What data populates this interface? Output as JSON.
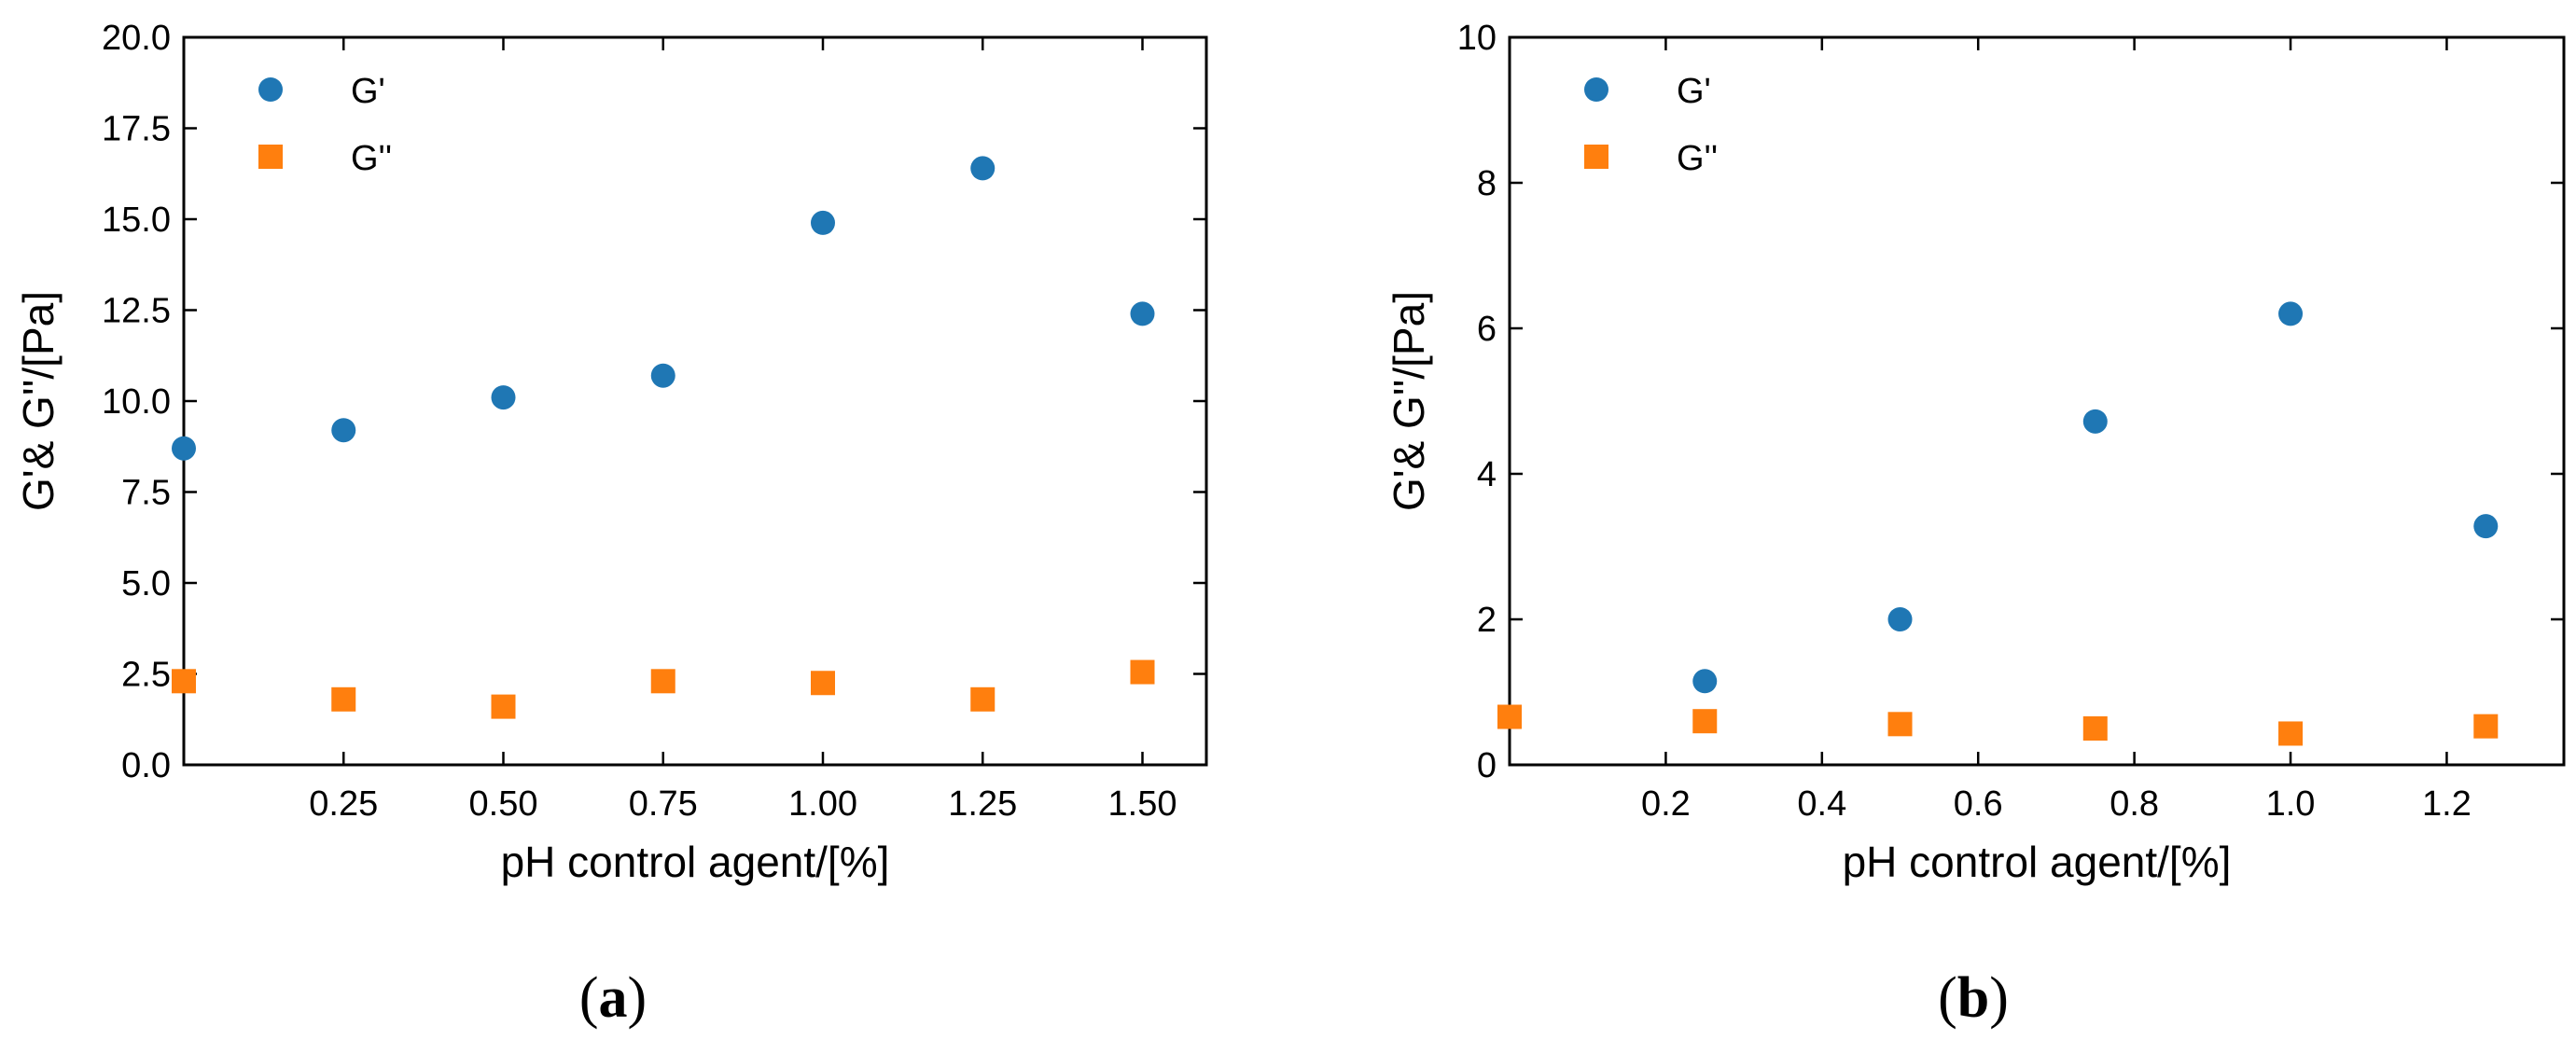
{
  "chart_data": [
    {
      "panel_label": "a",
      "type": "scatter",
      "title": "",
      "xlabel": "pH control agent/[%]",
      "ylabel": "G'& G''/[Pa]",
      "xlim": [
        0,
        1.6
      ],
      "ylim": [
        0,
        20
      ],
      "xticks": [
        0.25,
        0.5,
        0.75,
        1.0,
        1.25,
        1.5
      ],
      "xtick_labels": [
        "0.25",
        "0.50",
        "0.75",
        "1.00",
        "1.25",
        "1.50"
      ],
      "yticks": [
        0,
        2.5,
        5,
        7.5,
        10,
        12.5,
        15,
        17.5,
        20
      ],
      "ytick_labels": [
        "0.0",
        "2.5",
        "5.0",
        "7.5",
        "10.0",
        "12.5",
        "15.0",
        "17.5",
        "20.0"
      ],
      "legend_position": "top-left",
      "series": [
        {
          "name": "G'",
          "marker": "circle",
          "color": "#1f77b4",
          "x": [
            0,
            0.25,
            0.5,
            0.75,
            1.0,
            1.25,
            1.5
          ],
          "y": [
            8.7,
            9.2,
            10.1,
            10.7,
            14.9,
            16.4,
            12.4
          ]
        },
        {
          "name": "G''",
          "marker": "square",
          "color": "#ff7f0e",
          "x": [
            0,
            0.25,
            0.5,
            0.75,
            1.0,
            1.25,
            1.5
          ],
          "y": [
            2.3,
            1.8,
            1.6,
            2.3,
            2.25,
            1.8,
            2.55
          ]
        }
      ]
    },
    {
      "panel_label": "b",
      "type": "scatter",
      "title": "",
      "xlabel": "pH control agent/[%]",
      "ylabel": "G'& G''/[Pa]",
      "xlim": [
        0,
        1.35
      ],
      "ylim": [
        0,
        10
      ],
      "xticks": [
        0.2,
        0.4,
        0.6,
        0.8,
        1.0,
        1.2
      ],
      "xtick_labels": [
        "0.2",
        "0.4",
        "0.6",
        "0.8",
        "1.0",
        "1.2"
      ],
      "yticks": [
        0,
        2,
        4,
        6,
        8,
        10
      ],
      "ytick_labels": [
        "0",
        "2",
        "4",
        "6",
        "8",
        "10"
      ],
      "legend_position": "top-left",
      "series": [
        {
          "name": "G'",
          "marker": "circle",
          "color": "#1f77b4",
          "x": [
            0.25,
            0.5,
            0.75,
            1.0,
            1.25
          ],
          "y": [
            1.15,
            2.0,
            4.72,
            6.2,
            3.28
          ]
        },
        {
          "name": "G''",
          "marker": "square",
          "color": "#ff7f0e",
          "x": [
            0,
            0.25,
            0.5,
            0.75,
            1.0,
            1.25
          ],
          "y": [
            0.66,
            0.6,
            0.56,
            0.5,
            0.43,
            0.53
          ]
        }
      ]
    }
  ]
}
